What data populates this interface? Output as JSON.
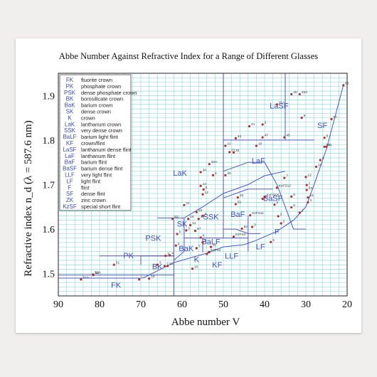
{
  "chart_data": {
    "type": "scatter",
    "title": "Abbe Number Against Refractive Index for a Range of Different Glasses",
    "xlabel": "Abbe number V",
    "ylabel": "Refractive index n_d (λ = 587.6 nm)",
    "xlim": [
      90,
      20
    ],
    "ylim": [
      1.45,
      1.95
    ],
    "x_ticks": [
      "90",
      "80",
      "70",
      "60",
      "50",
      "40",
      "30",
      "20"
    ],
    "y_ticks": [
      "1.5",
      "1.6",
      "1.7",
      "1.8",
      "1.9"
    ],
    "grid": true,
    "legend_position": "top-left",
    "legend": [
      {
        "abbr": "FK",
        "desc": "fluorite crown"
      },
      {
        "abbr": "PK",
        "desc": "phosphate crown"
      },
      {
        "abbr": "PSK",
        "desc": "dense phosphate crown"
      },
      {
        "abbr": "BK",
        "desc": "borosilicate crown"
      },
      {
        "abbr": "BaK",
        "desc": "barium crown"
      },
      {
        "abbr": "SK",
        "desc": "dense crown"
      },
      {
        "abbr": "K",
        "desc": "crown"
      },
      {
        "abbr": "LaK",
        "desc": "lanthanum crown"
      },
      {
        "abbr": "SSK",
        "desc": "very dense crown"
      },
      {
        "abbr": "BaLF",
        "desc": "barium light flint"
      },
      {
        "abbr": "KF",
        "desc": "crown/flint"
      },
      {
        "abbr": "LaSF",
        "desc": "lanthanum dense flint"
      },
      {
        "abbr": "LaF",
        "desc": "lanthanum flint"
      },
      {
        "abbr": "BaF",
        "desc": "barium flint"
      },
      {
        "abbr": "BaSF",
        "desc": "barium dense flint"
      },
      {
        "abbr": "LLF",
        "desc": "very light flint"
      },
      {
        "abbr": "LF",
        "desc": "light flint"
      },
      {
        "abbr": "F",
        "desc": "flint"
      },
      {
        "abbr": "SF",
        "desc": "dense flint"
      },
      {
        "abbr": "ZK",
        "desc": "zinc crown"
      },
      {
        "abbr": "KzSF",
        "desc": "special short flint"
      }
    ],
    "regions": [
      {
        "label": "FK",
        "x": 76,
        "y": 1.468,
        "size": 11
      },
      {
        "label": "PK",
        "x": 73,
        "y": 1.535,
        "size": 11
      },
      {
        "label": "PSK",
        "x": 67,
        "y": 1.574,
        "size": 11
      },
      {
        "label": "BK",
        "x": 66,
        "y": 1.51,
        "size": 11
      },
      {
        "label": "BaK",
        "x": 59,
        "y": 1.551,
        "size": 11
      },
      {
        "label": "SK",
        "x": 60,
        "y": 1.606,
        "size": 11
      },
      {
        "label": "K",
        "x": 56.5,
        "y": 1.526,
        "size": 11
      },
      {
        "label": "LaK",
        "x": 60.5,
        "y": 1.72,
        "size": 11
      },
      {
        "label": "SSK",
        "x": 53,
        "y": 1.622,
        "size": 11
      },
      {
        "label": "BaF",
        "x": 46.5,
        "y": 1.627,
        "size": 11
      },
      {
        "label": "BaLF",
        "x": 53,
        "y": 1.566,
        "size": 11
      },
      {
        "label": "KF",
        "x": 51.5,
        "y": 1.514,
        "size": 11
      },
      {
        "label": "LLF",
        "x": 48,
        "y": 1.534,
        "size": 11
      },
      {
        "label": "LF",
        "x": 41,
        "y": 1.555,
        "size": 11
      },
      {
        "label": "F",
        "x": 37,
        "y": 1.588,
        "size": 11
      },
      {
        "label": "BaSF",
        "x": 38,
        "y": 1.663,
        "size": 11
      },
      {
        "label": "LaF",
        "x": 41.5,
        "y": 1.747,
        "size": 11
      },
      {
        "label": "LaSF",
        "x": 36.5,
        "y": 1.871,
        "size": 11
      },
      {
        "label": "SF",
        "x": 26,
        "y": 1.827,
        "size": 11
      }
    ],
    "points": [
      {
        "x": 84.5,
        "y": 1.487,
        "label": "51A"
      },
      {
        "x": 81.5,
        "y": 1.497,
        "label": "52"
      },
      {
        "x": 76.5,
        "y": 1.52,
        "label": "51"
      },
      {
        "x": 81.6,
        "y": 1.498,
        "label": "52A"
      },
      {
        "x": 70.4,
        "y": 1.487,
        "label": "5"
      },
      {
        "x": 68.0,
        "y": 1.489,
        "label": "10"
      },
      {
        "x": 64.2,
        "y": 1.517,
        "label": "7"
      },
      {
        "x": 63.5,
        "y": 1.517,
        "label": "53"
      },
      {
        "x": 66.0,
        "y": 1.52,
        "label": "3"
      },
      {
        "x": 64.0,
        "y": 1.54,
        "label": "3"
      },
      {
        "x": 63.0,
        "y": 1.541,
        "label": "4"
      },
      {
        "x": 61.2,
        "y": 1.589,
        "label": "5"
      },
      {
        "x": 62.3,
        "y": 1.623,
        "label": "53"
      },
      {
        "x": 59.5,
        "y": 1.654,
        "label": "21"
      },
      {
        "x": 56.5,
        "y": 1.638,
        "label": "15"
      },
      {
        "x": 58.5,
        "y": 1.623,
        "label": "16"
      },
      {
        "x": 56.0,
        "y": 1.623,
        "label": "10"
      },
      {
        "x": 58.0,
        "y": 1.609,
        "label": "14"
      },
      {
        "x": 56.8,
        "y": 1.596,
        "label": "57"
      },
      {
        "x": 59.0,
        "y": 1.597,
        "label": "2"
      },
      {
        "x": 55.0,
        "y": 1.63,
        "label": "4"
      },
      {
        "x": 55.5,
        "y": 1.697,
        "label": "14"
      },
      {
        "x": 54.8,
        "y": 1.689,
        "label": "9"
      },
      {
        "x": 55.0,
        "y": 1.678,
        "label": "12"
      },
      {
        "x": 55.5,
        "y": 1.728,
        "label": "34"
      },
      {
        "x": 53.4,
        "y": 1.746,
        "label": "33A"
      },
      {
        "x": 52.5,
        "y": 1.721,
        "label": "8"
      },
      {
        "x": 49.5,
        "y": 1.721,
        "label": "35"
      },
      {
        "x": 48.5,
        "y": 1.773,
        "label": "21"
      },
      {
        "x": 47.5,
        "y": 1.772,
        "label": "33"
      },
      {
        "x": 49.5,
        "y": 1.787,
        "label": "22"
      },
      {
        "x": 47.0,
        "y": 1.804,
        "label": "44"
      },
      {
        "x": 40.5,
        "y": 1.806,
        "label": "47"
      },
      {
        "x": 43.7,
        "y": 1.831,
        "label": "41"
      },
      {
        "x": 40.5,
        "y": 1.835,
        "label": "2"
      },
      {
        "x": 35.2,
        "y": 1.806,
        "label": "45"
      },
      {
        "x": 42.0,
        "y": 1.787,
        "label": "18"
      },
      {
        "x": 46.5,
        "y": 1.671,
        "label": "10"
      },
      {
        "x": 47.0,
        "y": 1.656,
        "label": "51"
      },
      {
        "x": 40.5,
        "y": 1.668,
        "label": "2"
      },
      {
        "x": 45.5,
        "y": 1.601,
        "label": "52"
      },
      {
        "x": 43.0,
        "y": 1.605,
        "label": "3"
      },
      {
        "x": 43.5,
        "y": 1.631,
        "label": "KzFS11"
      },
      {
        "x": 47.5,
        "y": 1.583,
        "label": "KzFS4"
      },
      {
        "x": 40.0,
        "y": 1.672,
        "label": "KzFSN5"
      },
      {
        "x": 37.0,
        "y": 1.693,
        "label": "KzFS12"
      },
      {
        "x": 35.2,
        "y": 1.715,
        "label": "7"
      },
      {
        "x": 37.6,
        "y": 1.655,
        "label": "2"
      },
      {
        "x": 33.5,
        "y": 1.649,
        "label": "5"
      },
      {
        "x": 31.5,
        "y": 1.637,
        "label": "2"
      },
      {
        "x": 38.5,
        "y": 1.571,
        "label": "5"
      },
      {
        "x": 36.0,
        "y": 1.613,
        "label": "2"
      },
      {
        "x": 33.5,
        "y": 1.673,
        "label": "8"
      },
      {
        "x": 36.7,
        "y": 1.629,
        "label": "2"
      },
      {
        "x": 30.0,
        "y": 1.717,
        "label": "12"
      },
      {
        "x": 29.8,
        "y": 1.699,
        "label": "1"
      },
      {
        "x": 29.8,
        "y": 1.688,
        "label": "54"
      },
      {
        "x": 29.5,
        "y": 1.671,
        "label": "15"
      },
      {
        "x": 29.5,
        "y": 1.66,
        "label": "3"
      },
      {
        "x": 27.5,
        "y": 1.74,
        "label": "14"
      },
      {
        "x": 26.5,
        "y": 1.755,
        "label": "4"
      },
      {
        "x": 25.5,
        "y": 1.785,
        "label": "56"
      },
      {
        "x": 25.0,
        "y": 1.785,
        "label": "11"
      },
      {
        "x": 25.5,
        "y": 1.805,
        "label": "6"
      },
      {
        "x": 23.8,
        "y": 1.847,
        "label": "57"
      },
      {
        "x": 20.9,
        "y": 1.923,
        "label": "66"
      },
      {
        "x": 31.5,
        "y": 1.903,
        "label": "46A"
      },
      {
        "x": 33.5,
        "y": 1.903,
        "label": "40"
      },
      {
        "x": 37.0,
        "y": 1.88,
        "label": "31A"
      },
      {
        "x": 31.0,
        "y": 1.85,
        "label": "9"
      },
      {
        "x": 61.5,
        "y": 1.563,
        "label": "2"
      },
      {
        "x": 55.0,
        "y": 1.57,
        "label": "5"
      },
      {
        "x": 53.0,
        "y": 1.56,
        "label": "11"
      },
      {
        "x": 56.5,
        "y": 1.557,
        "label": "7"
      },
      {
        "x": 53.5,
        "y": 1.548,
        "label": "KzFS2"
      },
      {
        "x": 57.5,
        "y": 1.511,
        "label": "10"
      },
      {
        "x": 54.0,
        "y": 1.544,
        "label": "9"
      },
      {
        "x": 55.5,
        "y": 1.581,
        "label": "4"
      }
    ]
  }
}
